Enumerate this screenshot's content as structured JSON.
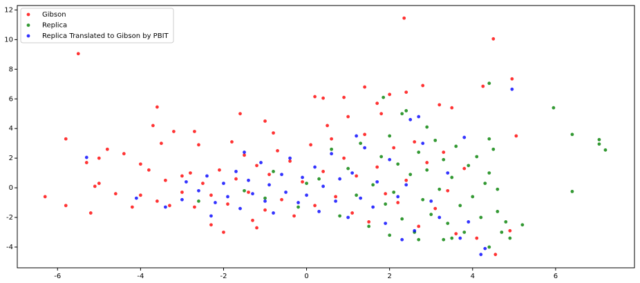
{
  "chart_data": {
    "type": "scatter",
    "xlim": [
      -6.97,
      7.9
    ],
    "ylim": [
      -5.4,
      12.3
    ],
    "xticks": [
      -6,
      -4,
      -2,
      0,
      2,
      4,
      6
    ],
    "yticks": [
      -4,
      -2,
      0,
      2,
      4,
      6,
      8,
      10,
      12
    ],
    "grid": false,
    "legend": "upper left",
    "series": [
      {
        "name": "Gibson",
        "color": "#ff0000",
        "x": [
          -6.3,
          -5.8,
          -5.8,
          -5.5,
          -5.3,
          -5.2,
          -5.1,
          -5.0,
          -5.0,
          -4.8,
          -4.6,
          -4.4,
          -4.2,
          -4.0,
          -3.7,
          -3.6,
          -3.5,
          -3.3,
          -3.2,
          -3.0,
          -2.7,
          -2.6,
          -2.3,
          -2.0,
          -1.6,
          -1.2,
          -1.0,
          0.2,
          0.4,
          0.9,
          1.4,
          1.7,
          1.8,
          2.0,
          2.35,
          2.4,
          2.8,
          3.2,
          3.5,
          4.25,
          4.5,
          4.95,
          5.05,
          4.9,
          4.55,
          4.1,
          -2.5,
          -2.3,
          -2.1,
          -1.9,
          -1.7,
          -1.5,
          -1.4,
          -1.2,
          -1.0,
          -0.9,
          -0.7,
          -0.6,
          -0.4,
          -0.3,
          -0.1,
          0.1,
          0.2,
          0.4,
          0.6,
          0.7,
          0.9,
          1.1,
          1.2,
          1.4,
          1.5,
          1.7,
          1.9,
          2.1,
          2.2,
          2.4,
          2.6,
          2.7,
          2.9,
          3.1,
          3.3,
          3.4,
          3.6,
          3.8,
          -3.0,
          -2.8,
          -2.7,
          -3.4,
          -3.8,
          -4.0,
          -3.6,
          -1.8,
          -0.8,
          0.5,
          1.0,
          -1.3
        ],
        "values": [
          -0.6,
          3.3,
          -1.2,
          9.05,
          1.7,
          -1.7,
          0.1,
          2.0,
          0.3,
          2.6,
          -0.4,
          2.3,
          -1.3,
          1.6,
          4.2,
          5.45,
          3.0,
          -1.2,
          3.8,
          0.8,
          3.8,
          2.9,
          -2.5,
          -3.0,
          5.0,
          -2.7,
          4.5,
          6.15,
          6.05,
          6.1,
          6.8,
          5.7,
          5.0,
          6.3,
          11.45,
          6.45,
          6.9,
          5.6,
          5.4,
          6.85,
          10.05,
          7.35,
          3.5,
          -2.9,
          -4.5,
          -3.4,
          0.3,
          -0.5,
          1.2,
          -1.1,
          0.6,
          2.2,
          -0.3,
          1.5,
          -1.5,
          0.9,
          2.5,
          -0.8,
          1.8,
          -1.9,
          0.4,
          2.9,
          -1.2,
          1.1,
          3.3,
          -0.6,
          2.0,
          -1.7,
          0.8,
          3.6,
          -2.3,
          1.4,
          -0.4,
          2.7,
          -1.0,
          0.5,
          3.1,
          -2.6,
          1.7,
          -1.4,
          2.4,
          -0.2,
          -3.1,
          1.3,
          -0.3,
          1.0,
          -1.3,
          0.5,
          1.2,
          -0.5,
          -0.9,
          3.1,
          3.7,
          4.2,
          4.8,
          -2.2
        ]
      },
      {
        "name": "Replica",
        "color": "#008000",
        "x": [
          5.95,
          6.4,
          6.4,
          7.05,
          7.05,
          7.2,
          4.4,
          1.85,
          2.3,
          2.4,
          5.2,
          4.7,
          4.4,
          2.7,
          3.3,
          4.4,
          4.5,
          4.4,
          4.6,
          -2.6,
          -1.5,
          -0.8,
          -0.2,
          0.3,
          0.6,
          0.8,
          1.0,
          1.2,
          1.3,
          1.5,
          1.6,
          1.8,
          1.9,
          2.0,
          2.1,
          2.2,
          2.3,
          2.5,
          2.6,
          2.7,
          2.8,
          2.9,
          3.0,
          3.1,
          3.2,
          3.3,
          3.4,
          3.5,
          3.6,
          3.7,
          3.8,
          3.9,
          4.0,
          4.1,
          4.2,
          4.3,
          4.6,
          4.8,
          4.9,
          3.5,
          2.9,
          2.0,
          0.0,
          -1.0
        ],
        "values": [
          5.4,
          3.6,
          -0.25,
          3.25,
          2.95,
          2.55,
          7.05,
          6.1,
          5.0,
          5.2,
          -2.5,
          -3.0,
          -4.0,
          -3.5,
          -3.5,
          3.3,
          2.6,
          1.0,
          -0.1,
          -0.9,
          -0.2,
          1.1,
          -1.3,
          0.6,
          2.6,
          -1.9,
          1.3,
          -0.5,
          3.0,
          -2.6,
          0.2,
          2.1,
          -1.1,
          3.5,
          -0.3,
          1.6,
          -2.1,
          0.9,
          -3.0,
          2.4,
          -0.8,
          1.2,
          -1.8,
          3.2,
          -0.1,
          1.9,
          -2.4,
          0.7,
          2.8,
          -1.2,
          -3.0,
          1.5,
          -0.6,
          2.1,
          -2.0,
          0.3,
          -1.6,
          -2.3,
          -3.4,
          -3.4,
          4.1,
          -3.2,
          0.3,
          -0.7
        ]
      },
      {
        "name": "Replica Translated to Gibson by PBIT",
        "color": "#0000ff",
        "x": [
          -5.3,
          -4.1,
          -3.4,
          4.95,
          4.2,
          4.3,
          2.5,
          2.7,
          3.8,
          2.3,
          -2.3,
          -2.6,
          -2.4,
          -2.2,
          -2.0,
          -1.9,
          -1.7,
          -1.6,
          -1.4,
          -1.3,
          -1.1,
          -1.0,
          -0.9,
          -0.8,
          -0.6,
          -0.5,
          -0.4,
          -0.2,
          -0.1,
          0.0,
          0.2,
          0.3,
          0.4,
          0.6,
          0.7,
          0.8,
          1.0,
          1.1,
          1.3,
          1.4,
          1.6,
          1.7,
          1.9,
          2.0,
          2.2,
          2.4,
          2.6,
          2.8,
          3.0,
          3.2,
          3.4,
          3.7,
          3.9,
          -3.0,
          -2.9,
          1.2,
          -1.5
        ],
        "values": [
          2.05,
          -0.7,
          -1.3,
          6.65,
          -4.5,
          -4.1,
          4.6,
          4.8,
          3.4,
          -3.5,
          -1.9,
          -0.2,
          0.8,
          -1.0,
          0.3,
          -0.6,
          1.1,
          -1.4,
          0.5,
          -0.4,
          1.7,
          -0.9,
          0.2,
          -1.7,
          0.9,
          -0.3,
          2.0,
          -1.0,
          0.7,
          -0.5,
          1.4,
          -1.6,
          0.1,
          2.3,
          -0.9,
          0.6,
          -2.0,
          1.0,
          -0.7,
          2.7,
          -1.3,
          0.4,
          -2.4,
          1.9,
          -0.6,
          0.2,
          -2.9,
          3.0,
          -0.9,
          -2.0,
          1.0,
          -3.4,
          -2.3,
          -0.8,
          0.4,
          3.5,
          2.4
        ]
      }
    ]
  }
}
